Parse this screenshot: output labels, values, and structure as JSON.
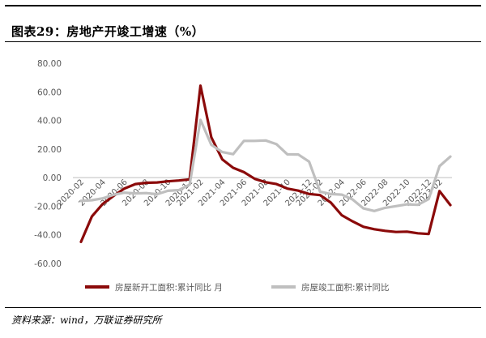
{
  "figure": {
    "title": "图表29：房地产开竣工增速（%）",
    "source": "资料来源：wind，万联证券研究所"
  },
  "chart_data": {
    "type": "line",
    "title": "",
    "xlabel": "",
    "ylabel": "",
    "ylim": [
      -60,
      80
    ],
    "y_ticks": [
      80,
      60,
      40,
      20,
      0,
      -20,
      -40,
      -60
    ],
    "y_tick_labels": [
      "80.00",
      "60.00",
      "40.00",
      "20.00",
      "0.00",
      "-20.00",
      "-40.00",
      "-60.00"
    ],
    "grid": false,
    "legend_position": "bottom",
    "categories": [
      "2020-02",
      "2020-03",
      "2020-04",
      "2020-05",
      "2020-06",
      "2020-07",
      "2020-08",
      "2020-09",
      "2020-10",
      "2020-11",
      "2020-12",
      "2021-02",
      "2021-03",
      "2021-04",
      "2021-05",
      "2021-06",
      "2021-07",
      "2021-08",
      "2021-09",
      "2021-10",
      "2021-11",
      "2021-12",
      "2022-02",
      "2022-03",
      "2022-04",
      "2022-05",
      "2022-06",
      "2022-07",
      "2022-08",
      "2022-09",
      "2022-10",
      "2022-11",
      "2022-12",
      "2023-02",
      "2023-03"
    ],
    "x_tick_labels": [
      "2020-02",
      "2020-04",
      "2020-06",
      "2020-08",
      "2020-10",
      "2020-12",
      "2021-02",
      "2021-04",
      "2021-06",
      "2021-08",
      "2021-10",
      "2021-12",
      "2022-02",
      "2022-04",
      "2022-06",
      "2022-08",
      "2022-10",
      "2022-12",
      "2023-02"
    ],
    "series": [
      {
        "name": "房屋新开工面积:累计同比 月",
        "color": "#8B0A0A",
        "values": [
          -44.9,
          -27.2,
          -18.4,
          -12.8,
          -7.6,
          -4.5,
          -3.6,
          -3.4,
          -2.6,
          -2.0,
          -1.2,
          64.3,
          28.2,
          12.8,
          6.9,
          3.8,
          -0.9,
          -3.2,
          -4.5,
          -7.7,
          -9.1,
          -11.4,
          -12.2,
          -17.5,
          -26.3,
          -30.6,
          -34.4,
          -36.1,
          -37.2,
          -38.0,
          -37.8,
          -38.9,
          -39.4,
          -9.4,
          -19.2
        ]
      },
      {
        "name": "房屋竣工面积:累计同比",
        "color": "#BFBFBF",
        "values": [
          -16.3,
          -15.8,
          -14.5,
          -12.0,
          -10.5,
          -11.0,
          -10.8,
          -11.6,
          -9.2,
          -8.7,
          -4.9,
          40.4,
          22.9,
          17.9,
          16.4,
          25.7,
          25.7,
          26.0,
          23.4,
          16.3,
          16.2,
          11.2,
          -9.8,
          -11.5,
          -11.9,
          -15.3,
          -21.5,
          -23.3,
          -21.1,
          -19.9,
          -18.7,
          -19.0,
          -15.0,
          8.0,
          14.7
        ]
      }
    ]
  }
}
